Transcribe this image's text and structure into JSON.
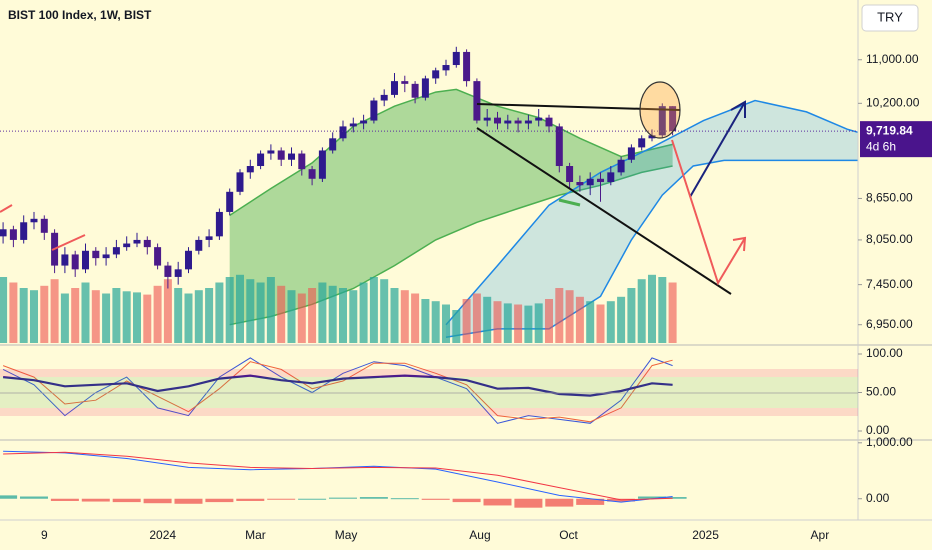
{
  "header": {
    "title": "BIST 100 Index, 1W, BIST",
    "currency": "TRY"
  },
  "chart_data": [
    {
      "type": "candlestick",
      "xlim": [
        -0.3,
        83
      ],
      "xticks": [
        {
          "value": 4,
          "label": "9"
        },
        {
          "value": 15.5,
          "label": "2024"
        },
        {
          "value": 24.5,
          "label": "Mar"
        },
        {
          "value": 33.3,
          "label": "May"
        },
        {
          "value": 46.3,
          "label": "Aug"
        },
        {
          "value": 54.9,
          "label": "Oct"
        },
        {
          "value": 68.2,
          "label": "2025"
        },
        {
          "value": 79.3,
          "label": "Apr"
        }
      ],
      "ylim": [
        6710,
        12200
      ],
      "log_scale": true,
      "yticks": [
        {
          "value": 11000,
          "label": "11,000.00"
        },
        {
          "value": 10200,
          "label": "10,200.00"
        },
        {
          "value": 8650,
          "label": "8,650.00"
        },
        {
          "value": 8050,
          "label": "8,050.00"
        },
        {
          "value": 7450,
          "label": "7,450.00"
        },
        {
          "value": 6950,
          "label": "6,950.00"
        }
      ],
      "last_label": "9,719.84",
      "countdown": "4d 6h",
      "up_color": "#2e1a8e",
      "down_color": "#4b1a8a",
      "open": [
        8100,
        8200,
        8050,
        8300,
        8350,
        8150,
        7700,
        7850,
        7650,
        7900,
        7800,
        7850,
        7950,
        8000,
        8050,
        7950,
        7700,
        7550,
        7650,
        7900,
        8050,
        8100,
        8450,
        8750,
        9050,
        9150,
        9350,
        9400,
        9250,
        9350,
        9100,
        8950,
        9400,
        9600,
        9800,
        9850,
        9900,
        10250,
        10350,
        10600,
        10550,
        10300,
        10650,
        10800,
        10900,
        11150,
        10600,
        9900,
        9950,
        9850,
        9900,
        9850,
        9900,
        9950,
        9800,
        9150,
        8900,
        8850,
        8950,
        8900,
        9050,
        9250,
        9450,
        9600,
        9650,
        10150
      ],
      "high": [
        8300,
        8250,
        8400,
        8450,
        8400,
        8200,
        7950,
        7900,
        8000,
        7950,
        7950,
        8050,
        8100,
        8150,
        8100,
        8000,
        7750,
        7750,
        7950,
        8100,
        8200,
        8500,
        8800,
        9100,
        9250,
        9400,
        9500,
        9450,
        9450,
        9400,
        9150,
        9450,
        9700,
        9900,
        9950,
        10000,
        10300,
        10450,
        10750,
        10700,
        10600,
        10700,
        10850,
        11000,
        11250,
        11200,
        10650,
        10100,
        10050,
        10000,
        9950,
        10000,
        10100,
        10000,
        9850,
        9200,
        9000,
        9050,
        9050,
        9150,
        9300,
        9500,
        9650,
        9750,
        10200,
        10150
      ],
      "low": [
        8000,
        7950,
        8000,
        8200,
        8050,
        7600,
        7600,
        7550,
        7600,
        7700,
        7700,
        7800,
        7900,
        7950,
        7850,
        7650,
        7400,
        7450,
        7600,
        7850,
        7950,
        8050,
        8400,
        8700,
        8950,
        9100,
        9250,
        9150,
        9150,
        9000,
        8850,
        8900,
        9350,
        9550,
        9700,
        9750,
        9850,
        10150,
        10300,
        10400,
        10200,
        10250,
        10550,
        10700,
        10850,
        10500,
        9850,
        9800,
        9750,
        9750,
        9700,
        9750,
        9800,
        9700,
        9050,
        8800,
        8750,
        8700,
        8600,
        8850,
        9000,
        9200,
        9400,
        9550,
        9600,
        9650
      ],
      "close": [
        8200,
        8050,
        8300,
        8350,
        8150,
        7700,
        7850,
        7650,
        7900,
        7800,
        7850,
        7950,
        8000,
        8050,
        7950,
        7700,
        7550,
        7650,
        7900,
        8050,
        8100,
        8450,
        8750,
        9050,
        9150,
        9350,
        9400,
        9250,
        9350,
        9100,
        8950,
        9400,
        9600,
        9800,
        9850,
        9900,
        10250,
        10350,
        10600,
        10550,
        10300,
        10650,
        10800,
        10900,
        11150,
        10600,
        9900,
        9950,
        9850,
        9900,
        9850,
        9900,
        9950,
        9800,
        9150,
        8900,
        8850,
        8950,
        8900,
        9050,
        9250,
        9450,
        9600,
        9650,
        10150,
        9719.84
      ],
      "volume": {
        "values": [
          60,
          55,
          50,
          48,
          52,
          58,
          45,
          50,
          55,
          48,
          45,
          50,
          47,
          46,
          44,
          52,
          58,
          50,
          45,
          48,
          50,
          55,
          60,
          62,
          58,
          55,
          60,
          52,
          48,
          45,
          50,
          55,
          52,
          50,
          48,
          55,
          60,
          58,
          50,
          48,
          45,
          40,
          38,
          35,
          30,
          40,
          45,
          42,
          38,
          36,
          35,
          34,
          36,
          40,
          50,
          48,
          42,
          38,
          35,
          38,
          42,
          50,
          58,
          62,
          60,
          55
        ],
        "ylim": [
          0,
          100
        ],
        "up_color": "rgba(38,166,154,0.7)",
        "down_color": "rgba(239,83,80,0.6)"
      },
      "bands": [
        {
          "upper": {
            "x": [
              22,
              26,
              30,
              34,
              38,
              42,
              44,
              48,
              52,
              56,
              60,
              65
            ],
            "values": [
              8400,
              8800,
              9200,
              9800,
              10150,
              10400,
              10450,
              10150,
              9950,
              9600,
              9300,
              9500
            ]
          },
          "lower": {
            "x": [
              22,
              26,
              30,
              34,
              38,
              42,
              46,
              50,
              54,
              58,
              62,
              65
            ],
            "values": [
              6950,
              7050,
              7200,
              7400,
              7700,
              8050,
              8300,
              8500,
              8700,
              8850,
              9050,
              9150
            ]
          },
          "line_color": "#4caf50",
          "fill": "rgba(76,175,80,0.45)"
        },
        {
          "upper": {
            "x": [
              43,
              48,
              53,
              58,
              63,
              68,
              73,
              78,
              82,
              83
            ],
            "values": [
              6950,
              7700,
              8550,
              9050,
              9450,
              9900,
              10250,
              10050,
              9750,
              9700
            ]
          },
          "lower": {
            "x": [
              43,
              48,
              53,
              58,
              61,
              64,
              67,
              70,
              83
            ],
            "values": [
              6800,
              6900,
              6900,
              7300,
              8050,
              8700,
              9150,
              9240,
              9240
            ]
          },
          "line_color": "#1e88e5",
          "fill": "rgba(33,150,243,0.22)"
        }
      ]
    },
    {
      "type": "line",
      "ylim": [
        -11.7,
        111.7
      ],
      "yticks": [
        {
          "value": 100,
          "label": "100.00"
        },
        {
          "value": 50,
          "label": "50.00"
        },
        {
          "value": 0,
          "label": "0.00"
        }
      ],
      "series": [
        {
          "color": "#3a57d8",
          "width": 1,
          "x": [
            0,
            3,
            6,
            9,
            12,
            15,
            18,
            21,
            24,
            27,
            30,
            33,
            36,
            39,
            42,
            45,
            48,
            51,
            54,
            57,
            60,
            63,
            65
          ],
          "values": [
            80,
            60,
            20,
            50,
            70,
            30,
            20,
            70,
            95,
            70,
            50,
            75,
            90,
            85,
            70,
            55,
            10,
            20,
            15,
            10,
            40,
            95,
            85
          ]
        },
        {
          "color": "#f0643c",
          "width": 1,
          "x": [
            0,
            3,
            6,
            9,
            12,
            15,
            18,
            21,
            24,
            27,
            30,
            33,
            36,
            39,
            42,
            45,
            48,
            51,
            54,
            57,
            60,
            63,
            65
          ],
          "values": [
            85,
            70,
            35,
            40,
            65,
            45,
            25,
            55,
            90,
            80,
            55,
            65,
            88,
            88,
            75,
            60,
            20,
            15,
            18,
            12,
            30,
            85,
            92
          ]
        },
        {
          "color": "#311b92",
          "width": 2.2,
          "x": [
            0,
            3,
            6,
            9,
            12,
            15,
            18,
            21,
            24,
            27,
            30,
            33,
            36,
            39,
            42,
            45,
            48,
            51,
            54,
            57,
            60,
            63,
            65
          ],
          "values": [
            70,
            66,
            58,
            60,
            62,
            52,
            58,
            68,
            72,
            66,
            62,
            68,
            70,
            72,
            70,
            66,
            55,
            56,
            48,
            46,
            52,
            62,
            60
          ]
        }
      ]
    },
    {
      "type": "line",
      "ylim": [
        -380,
        1050
      ],
      "yticks": [
        {
          "value": 1000,
          "label": "1,000.00"
        },
        {
          "value": 0,
          "label": "0.00"
        }
      ],
      "bars": {
        "x": [
          0,
          3,
          6,
          9,
          12,
          15,
          18,
          21,
          24,
          27,
          30,
          33,
          36,
          39,
          42,
          45,
          48,
          51,
          54,
          57,
          60,
          63,
          65
        ],
        "values": [
          60,
          40,
          -40,
          -50,
          -60,
          -80,
          -90,
          -60,
          -40,
          -10,
          0,
          20,
          30,
          10,
          -20,
          -60,
          -120,
          -160,
          -140,
          -110,
          -50,
          40,
          30
        ],
        "up_color": "#26a69a",
        "down_color": "#ef5350"
      },
      "series": [
        {
          "color": "#2962ff",
          "width": 1,
          "x": [
            0,
            6,
            12,
            18,
            24,
            30,
            36,
            42,
            48,
            54,
            60,
            65
          ],
          "values": [
            850,
            820,
            720,
            560,
            520,
            540,
            580,
            530,
            300,
            60,
            -60,
            40
          ]
        },
        {
          "color": "#f23645",
          "width": 1,
          "x": [
            0,
            6,
            12,
            18,
            24,
            30,
            36,
            42,
            48,
            54,
            60,
            65
          ],
          "values": [
            800,
            830,
            760,
            640,
            560,
            540,
            560,
            550,
            420,
            200,
            -20,
            10
          ]
        }
      ]
    }
  ]
}
